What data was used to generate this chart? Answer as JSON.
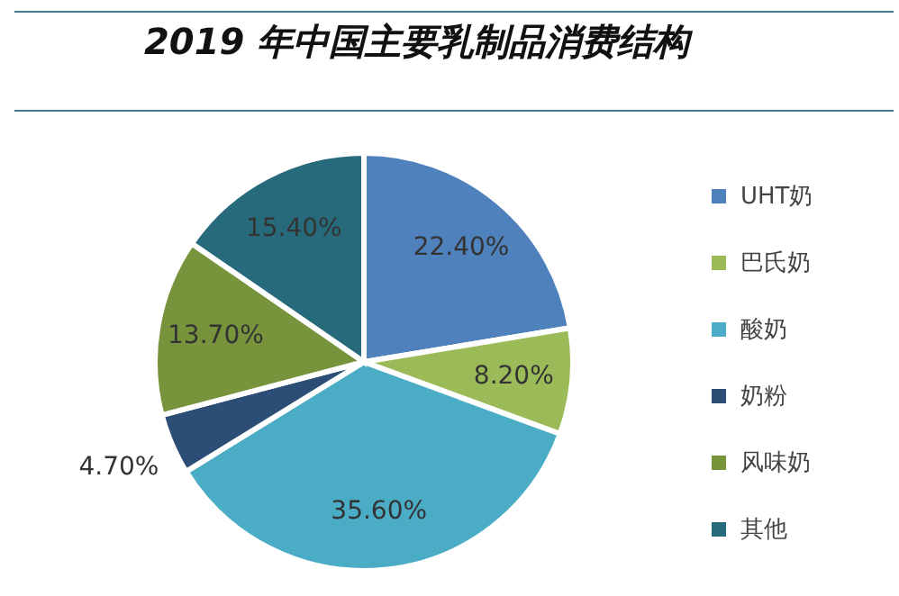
{
  "chart_data": {
    "type": "pie",
    "title": "2019 年中国主要乳制品消费结构",
    "categories": [
      "UHT奶",
      "巴氏奶",
      "酸奶",
      "奶粉",
      "风味奶",
      "其他"
    ],
    "values": [
      22.4,
      8.2,
      35.6,
      4.7,
      13.7,
      15.4
    ],
    "colors": [
      "#4f81bd",
      "#9bbb59",
      "#4bacc6",
      "#2c4d75",
      "#77933c",
      "#276a7c"
    ],
    "value_labels": [
      "22.40%",
      "8.20%",
      "35.60%",
      "4.70%",
      "13.70%",
      "15.40%"
    ],
    "legend": "right"
  }
}
